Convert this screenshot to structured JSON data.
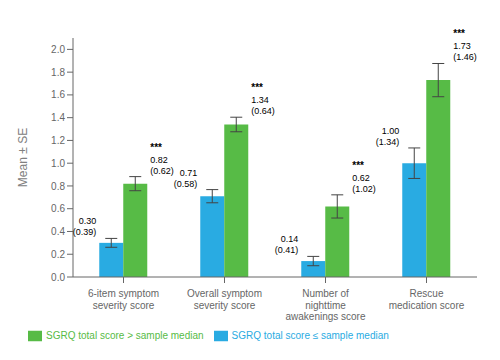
{
  "chart_data": {
    "type": "bar",
    "categories": [
      "6-item symptom\nseverity score",
      "Overall symptom\nseverity score",
      "Number of\nnighttime\nawakenings score",
      "Rescue\nmedication score"
    ],
    "series": [
      {
        "name": "SGRQ total score ≤ sample median",
        "color": "#29ABE2",
        "values": [
          0.3,
          0.71,
          0.14,
          1.0
        ],
        "value_labels": [
          "0.30",
          "0.71",
          "0.14",
          "1.00"
        ],
        "errors": [
          0.039,
          0.058,
          0.041,
          0.134
        ],
        "sds": [
          0.39,
          0.58,
          0.41,
          1.34
        ],
        "sd_labels": [
          "(0.39)",
          "(0.58)",
          "(0.41)",
          "(1.34)"
        ]
      },
      {
        "name": "SGRQ total score > sample median",
        "color": "#57BB46",
        "values": [
          0.82,
          1.34,
          0.62,
          1.73
        ],
        "value_labels": [
          "0.82",
          "1.34",
          "0.62",
          "1.73"
        ],
        "errors": [
          0.062,
          0.064,
          0.102,
          0.146
        ],
        "sds": [
          0.62,
          0.64,
          1.02,
          1.46
        ],
        "sd_labels": [
          "(0.62)",
          "(0.64)",
          "(1.02)",
          "(1.46)"
        ],
        "significance": [
          "***",
          "***",
          "***",
          "***"
        ]
      }
    ],
    "ylabel": "Mean ± SE",
    "ylim": [
      0,
      2.1
    ],
    "yticks": [
      {
        "value": 0.0,
        "label": "0.0"
      },
      0.2,
      0.4,
      0.6,
      0.8,
      {
        "value": 1.0,
        "label": "1.0"
      },
      1.2,
      1.4,
      1.6,
      1.8,
      {
        "value": 2.0,
        "label": "2.0"
      }
    ],
    "grid": false,
    "legend": "bottom",
    "data_labels": true
  }
}
